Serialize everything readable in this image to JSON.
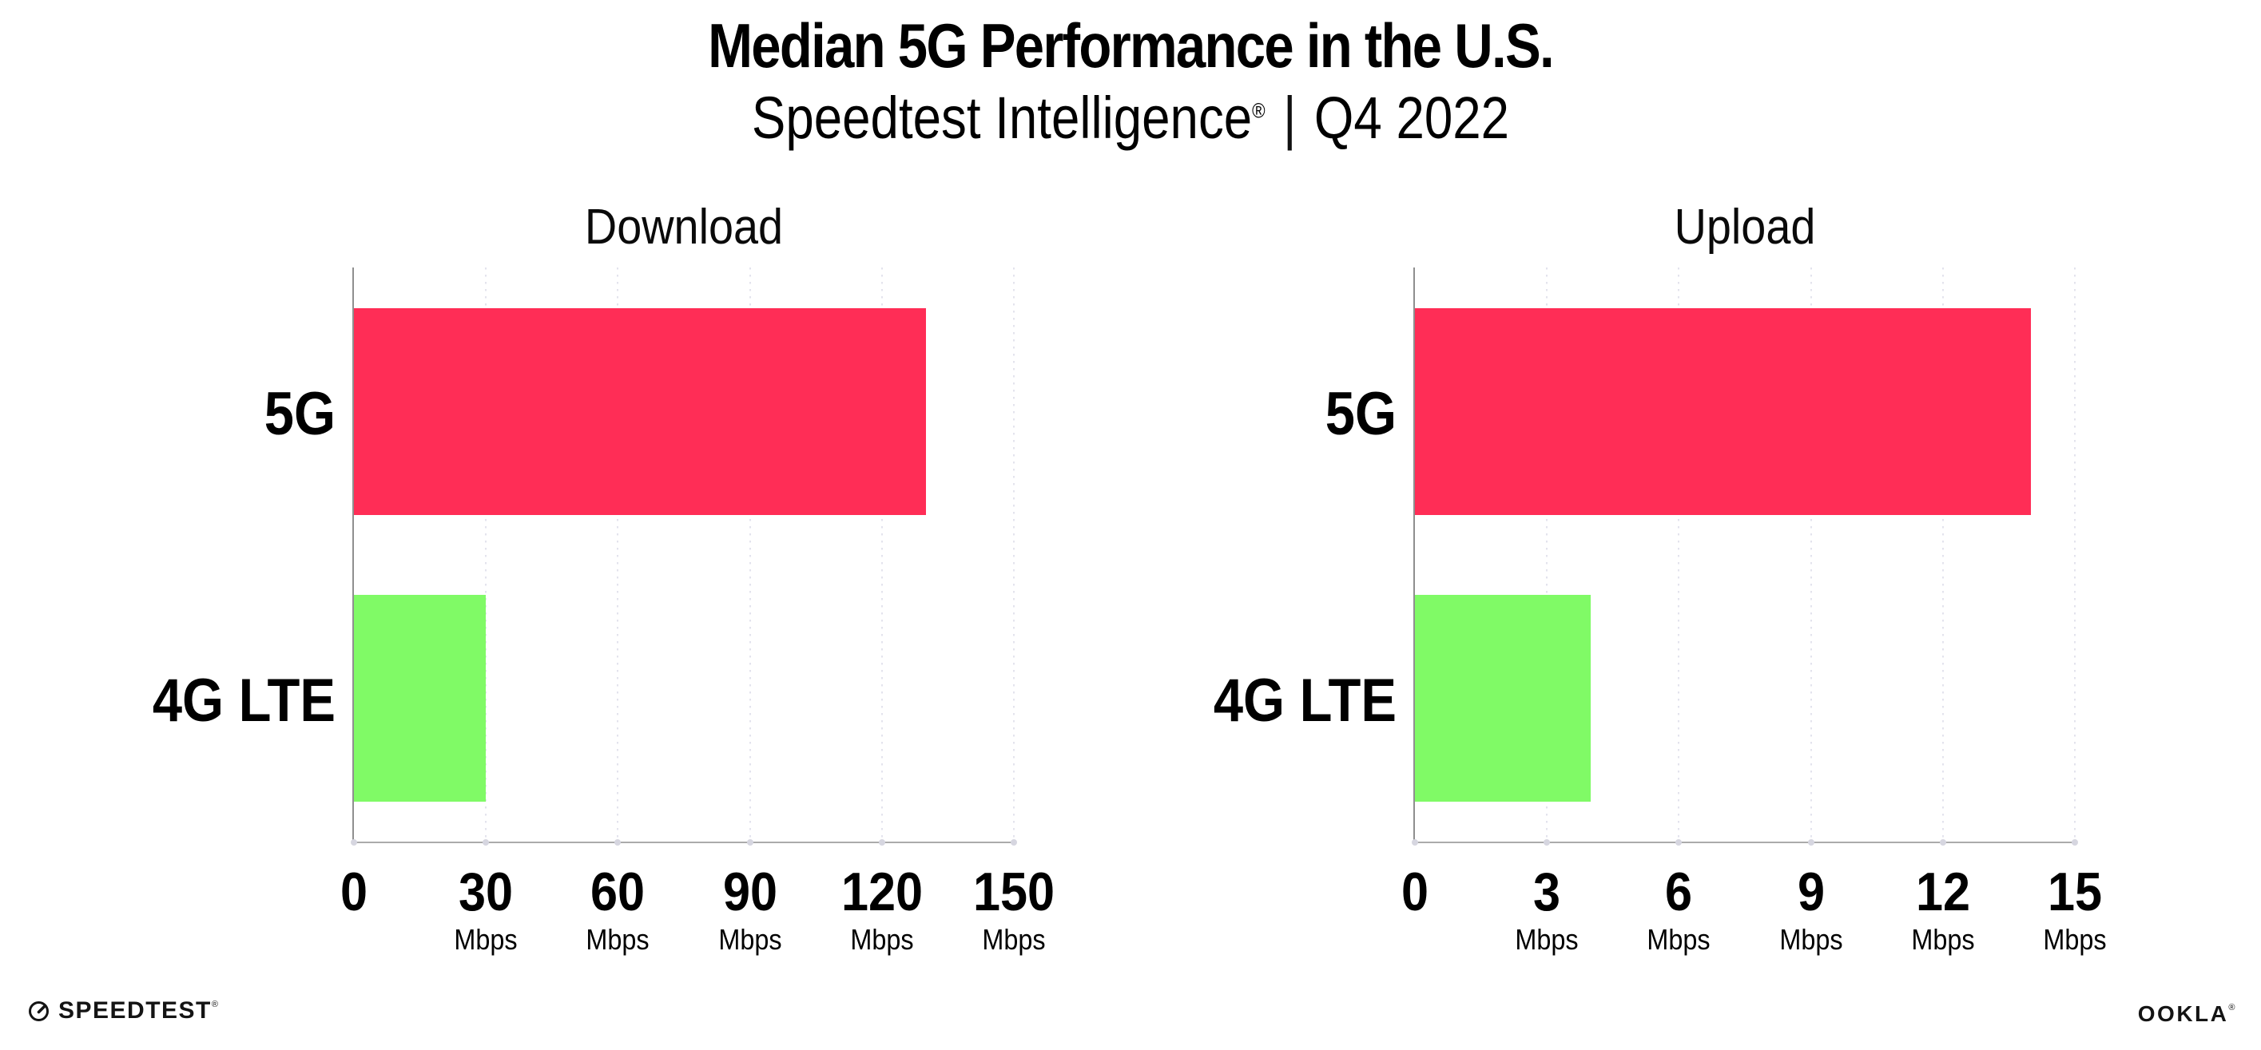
{
  "header": {
    "title": "Median 5G Performance in the U.S.",
    "subtitle_brand": "Speedtest Intelligence",
    "subtitle_reg": "®",
    "subtitle_divider": "|",
    "subtitle_period": "Q4 2022"
  },
  "chart_data": [
    {
      "type": "bar",
      "title": "Download",
      "orientation": "horizontal",
      "categories": [
        "5G",
        "4G LTE"
      ],
      "values": [
        130,
        30
      ],
      "value_unit": "Mbps",
      "xlim": [
        0,
        150
      ],
      "xticks": [
        0,
        30,
        60,
        90,
        120,
        150
      ],
      "xtick_unit": "Mbps",
      "grid": "vertical-dotted",
      "legend": "none",
      "bar_colors": [
        "#ff2d56",
        "#80fa66"
      ]
    },
    {
      "type": "bar",
      "title": "Upload",
      "orientation": "horizontal",
      "categories": [
        "5G",
        "4G LTE"
      ],
      "values": [
        14,
        4
      ],
      "value_unit": "Mbps",
      "xlim": [
        0,
        15
      ],
      "xticks": [
        0,
        3,
        6,
        9,
        12,
        15
      ],
      "xtick_unit": "Mbps",
      "grid": "vertical-dotted",
      "legend": "none",
      "bar_colors": [
        "#ff2d56",
        "#80fa66"
      ]
    }
  ],
  "footer": {
    "speedtest_label": "SPEEDTEST",
    "speedtest_reg": "®",
    "ookla_label": "OOKLA",
    "ookla_reg": "®"
  }
}
